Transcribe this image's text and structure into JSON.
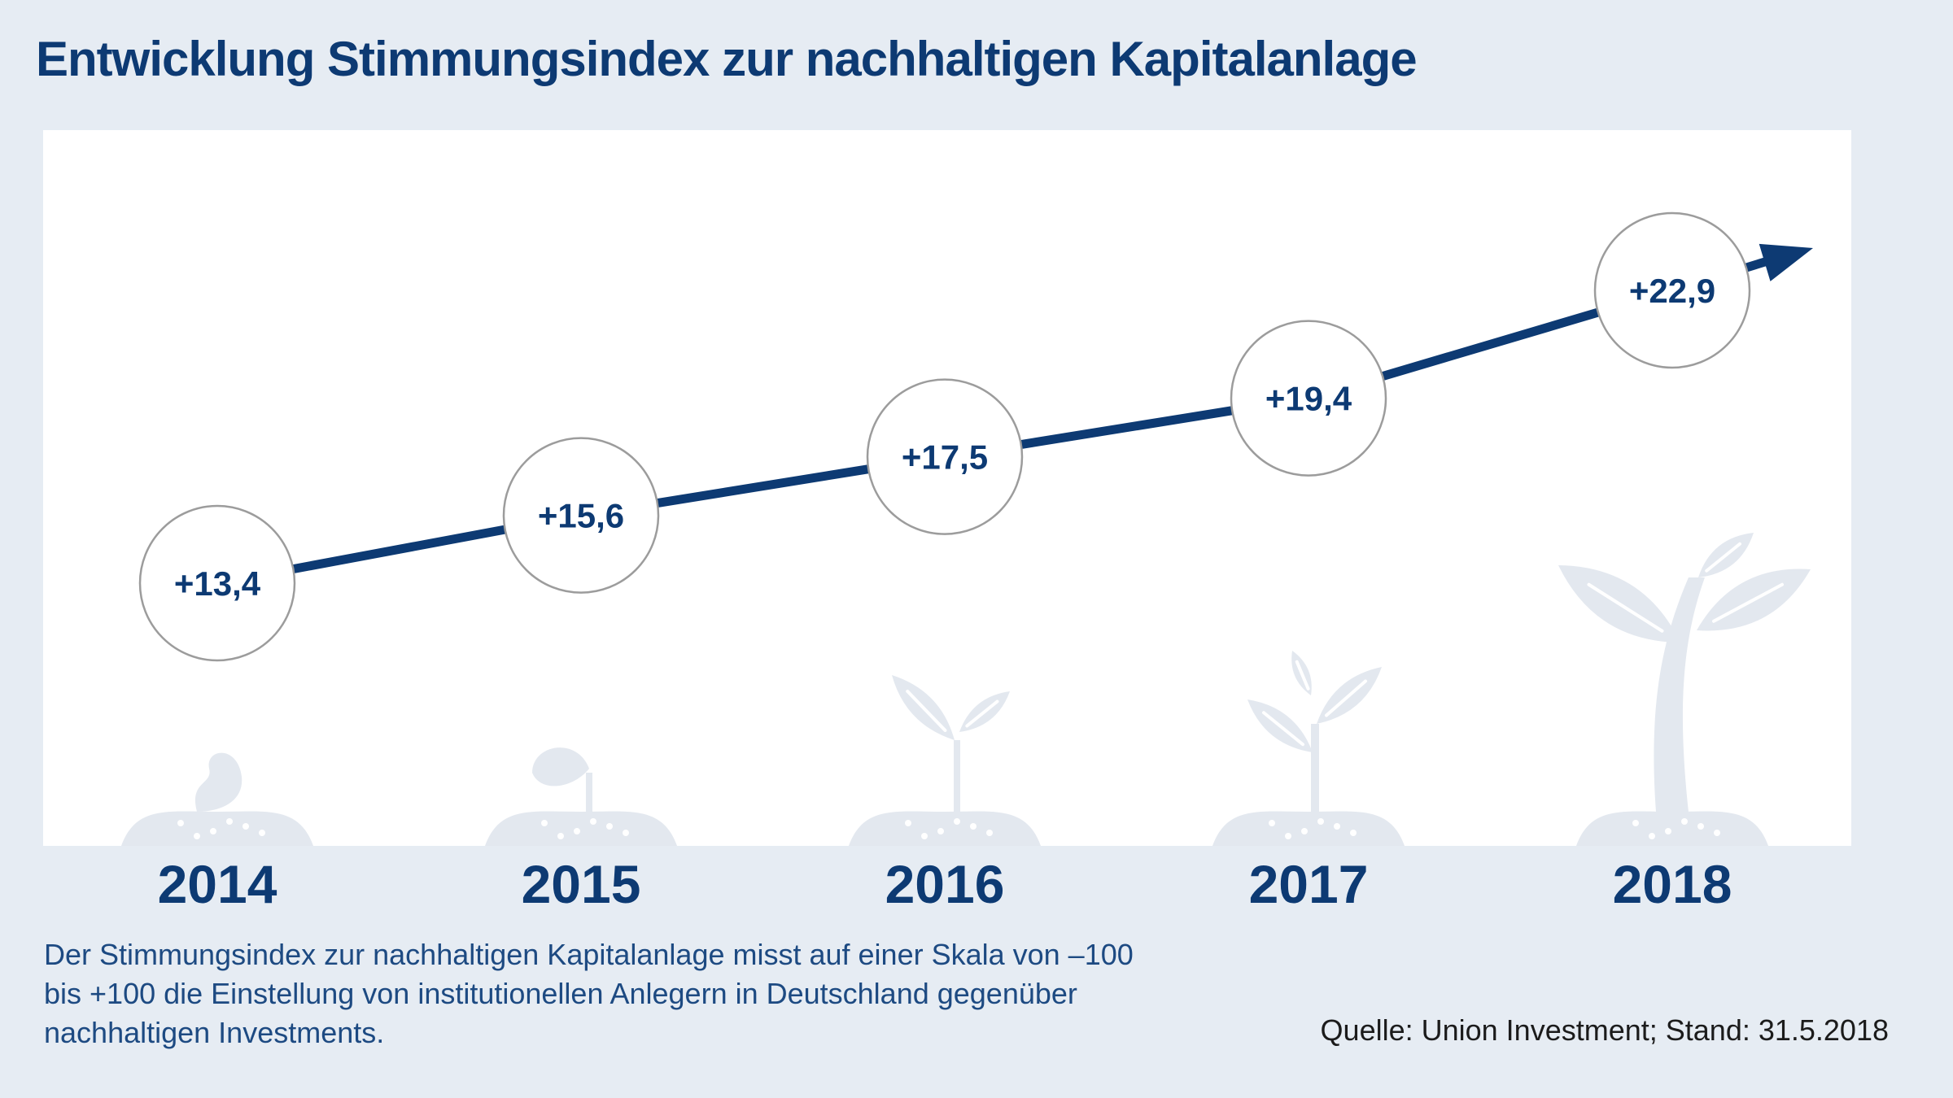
{
  "title": "Entwicklung Stimmungsindex zur nachhaltigen Kapitalanlage",
  "description": "Der Stimmungsindex zur nachhaltigen Kapitalanlage misst auf einer Skala von –100 bis +100 die Einstellung von institutionellen Anlegern in Deutschland gegenüber nachhaltigen Investments.",
  "source": "Quelle: Union Investment; Stand: 31.5.2018",
  "colors": {
    "accent": "#0d3a73",
    "background": "#e6ecf3",
    "panel": "#ffffff",
    "plant": "#e3e8ef",
    "circle_border": "#9c9c9c"
  },
  "icons": [
    "seed-icon",
    "sprout-icon",
    "seedling-icon",
    "young-plant-icon",
    "grown-plant-icon"
  ],
  "chart_data": {
    "type": "line",
    "categories": [
      "2014",
      "2015",
      "2016",
      "2017",
      "2018"
    ],
    "series": [
      {
        "values": [
          13.4,
          15.6,
          17.5,
          19.4,
          22.9
        ],
        "labels": [
          "+13,4",
          "+15,6",
          "+17,5",
          "+19,4",
          "+22,9"
        ]
      }
    ],
    "scale": [
      -100,
      100
    ],
    "grid": false,
    "legend": "none",
    "trend_arrow": true
  }
}
